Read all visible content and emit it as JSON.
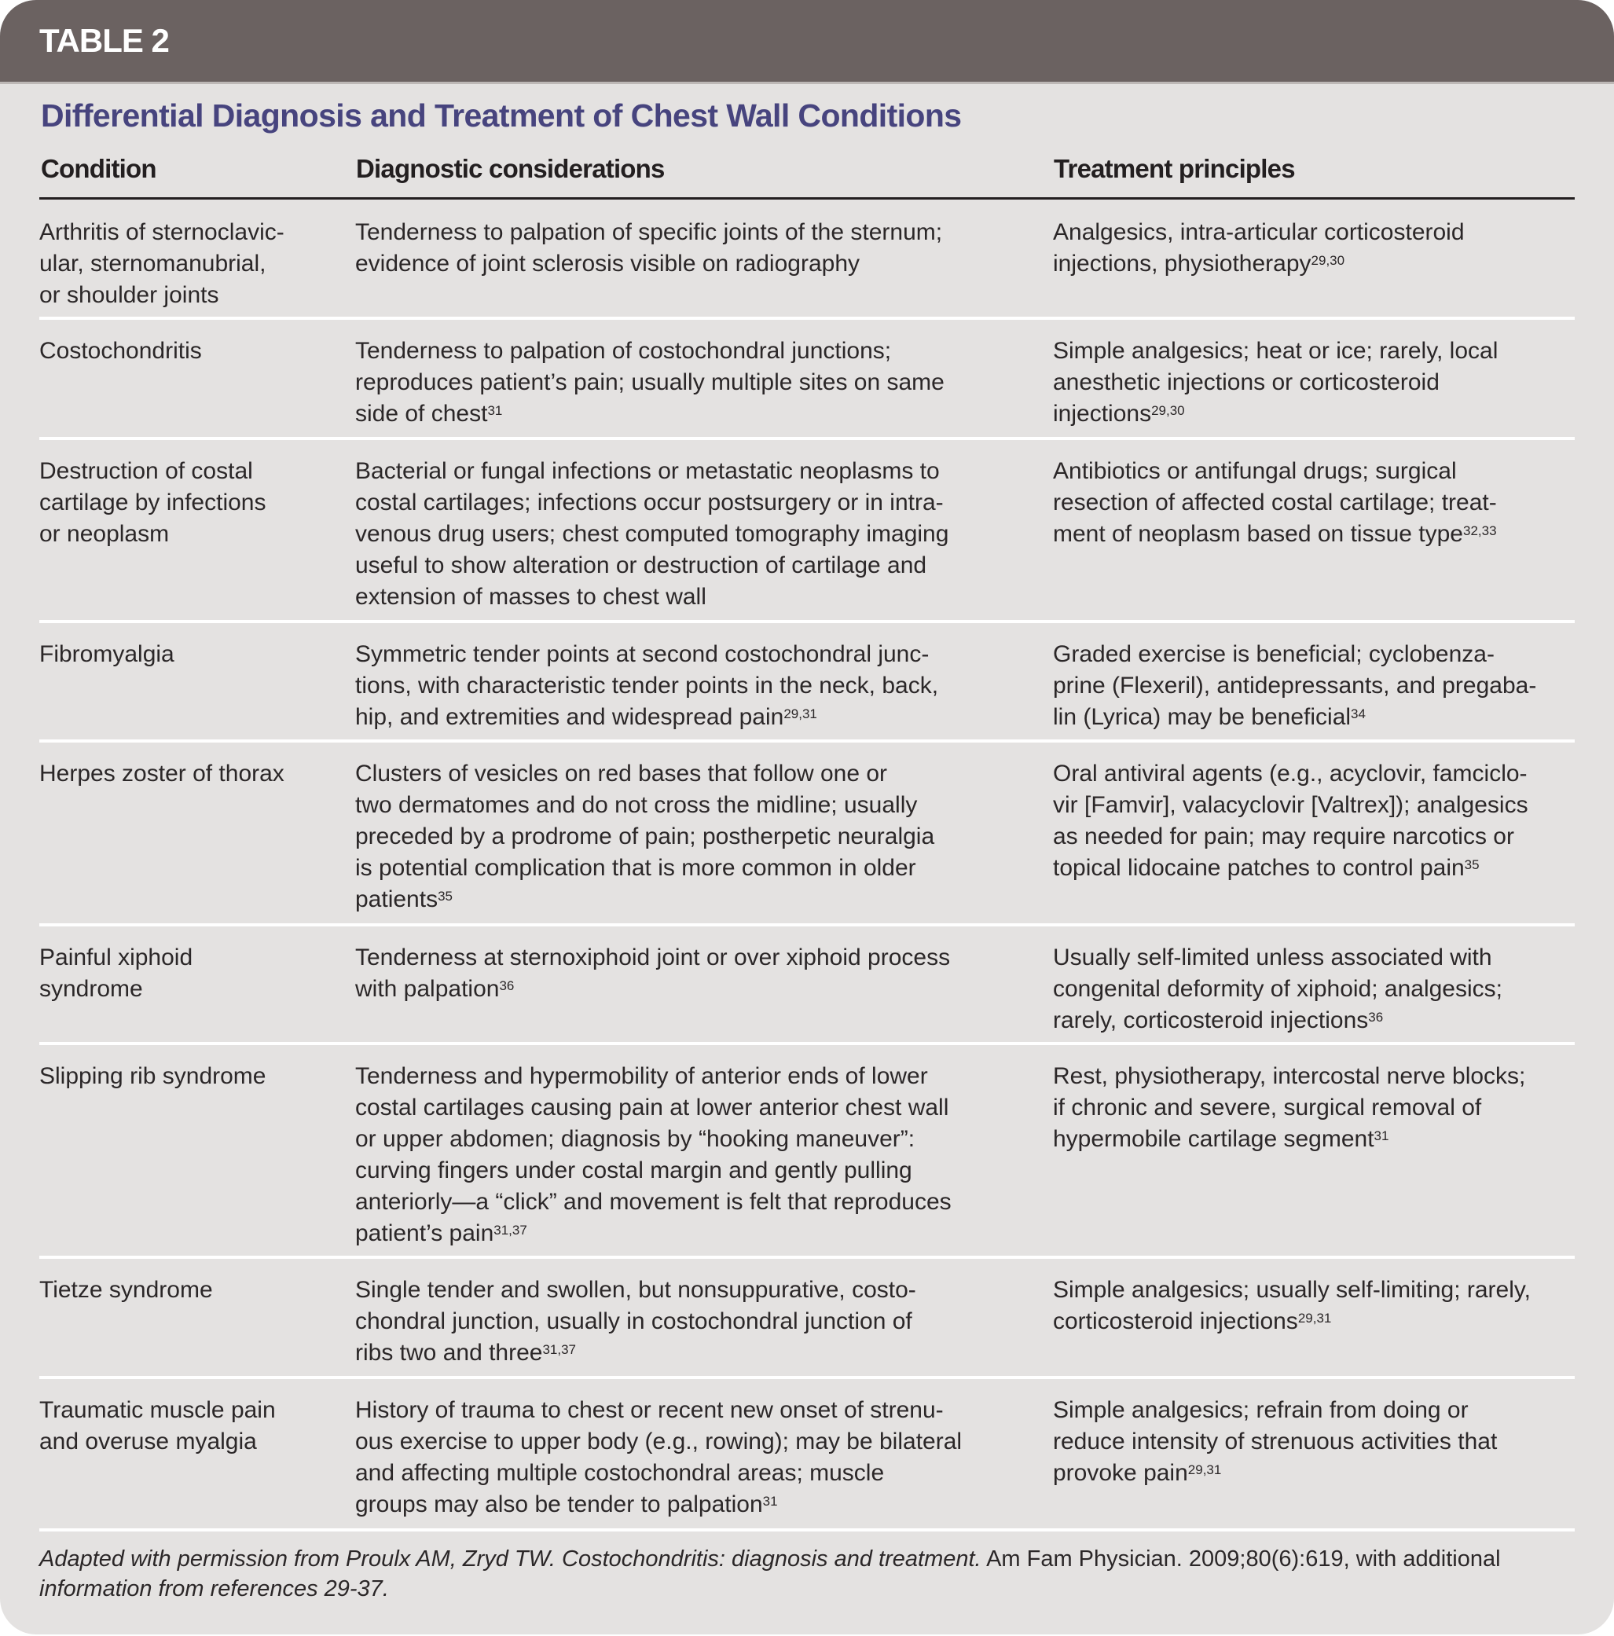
{
  "label": "TABLE 2",
  "title": "Differential Diagnosis and Treatment of Chest Wall Conditions",
  "columns": [
    "Condition",
    "Diagnostic considerations",
    "Treatment principles"
  ],
  "colors": {
    "band": "#6b6261",
    "title": "#47447e",
    "background": "#e4e2e1"
  },
  "rows": [
    {
      "cells": [
        {
          "lines": [
            "Arthritis of sternoclavic-",
            "ular, sternomanubrial,",
            "or shoulder joints"
          ],
          "sup": ""
        },
        {
          "lines": [
            "Tenderness to palpation of specific joints of the sternum;",
            "evidence of joint sclerosis visible on radiography"
          ],
          "sup": ""
        },
        {
          "lines": [
            "Analgesics, intra-articular corticosteroid",
            "injections, physiotherapy"
          ],
          "sup": "29,30"
        }
      ]
    },
    {
      "cells": [
        {
          "lines": [
            "Costochondritis"
          ],
          "sup": ""
        },
        {
          "lines": [
            "Tenderness to palpation of costochondral junctions;",
            "reproduces patient’s pain; usually multiple sites on same",
            "side of chest"
          ],
          "sup": "31"
        },
        {
          "lines": [
            "Simple analgesics; heat or ice; rarely, local",
            "anesthetic injections or corticosteroid",
            "injections"
          ],
          "sup": "29,30"
        }
      ]
    },
    {
      "cells": [
        {
          "lines": [
            "Destruction of costal",
            "cartilage by infections",
            "or neoplasm"
          ],
          "sup": ""
        },
        {
          "lines": [
            "Bacterial or fungal infections or metastatic neoplasms to",
            "costal cartilages; infections occur postsurgery or in intra-",
            "venous drug users; chest computed tomography imaging",
            "useful to show alteration or destruction of cartilage and",
            "extension of masses to chest wall"
          ],
          "sup": ""
        },
        {
          "lines": [
            "Antibiotics or antifungal drugs; surgical",
            "resection of affected costal cartilage; treat-",
            "ment of neoplasm based on tissue type"
          ],
          "sup": "32,33"
        }
      ]
    },
    {
      "cells": [
        {
          "lines": [
            "Fibromyalgia"
          ],
          "sup": ""
        },
        {
          "lines": [
            "Symmetric tender points at second costochondral junc-",
            "tions, with characteristic tender points in the neck, back,",
            "hip, and extremities and widespread pain"
          ],
          "sup": "29,31"
        },
        {
          "lines": [
            "Graded exercise is beneficial; cyclobenza-",
            "prine (Flexeril), antidepressants, and pregaba-",
            "lin (Lyrica) may be beneficial"
          ],
          "sup": "34"
        }
      ]
    },
    {
      "cells": [
        {
          "lines": [
            "Herpes zoster of thorax"
          ],
          "sup": ""
        },
        {
          "lines": [
            "Clusters of vesicles on red bases that follow one or",
            "two dermatomes and do not cross the midline; usually",
            "preceded by a prodrome of pain; postherpetic neuralgia",
            "is potential complication that is more common in older",
            "patients"
          ],
          "sup": "35"
        },
        {
          "lines": [
            "Oral antiviral agents (e.g., acyclovir, famciclo-",
            "vir [Famvir], valacyclovir [Valtrex]); analgesics",
            "as needed for pain; may require narcotics or",
            "topical lidocaine patches to control pain"
          ],
          "sup": "35"
        }
      ]
    },
    {
      "cells": [
        {
          "lines": [
            "Painful xiphoid",
            "syndrome"
          ],
          "sup": ""
        },
        {
          "lines": [
            "Tenderness at sternoxiphoid joint or over xiphoid process",
            "with palpation"
          ],
          "sup": "36"
        },
        {
          "lines": [
            "Usually self-limited unless associated with",
            "congenital deformity of xiphoid; analgesics;",
            "rarely, corticosteroid injections"
          ],
          "sup": "36"
        }
      ]
    },
    {
      "cells": [
        {
          "lines": [
            "Slipping rib syndrome"
          ],
          "sup": ""
        },
        {
          "lines": [
            "Tenderness and hypermobility of anterior ends of lower",
            "costal cartilages causing pain at lower anterior chest wall",
            "or upper abdomen; diagnosis by “hooking maneuver”:",
            "curving fingers under costal margin and gently pulling",
            "anteriorly—a “click” and movement is felt that reproduces",
            "patient’s pain"
          ],
          "sup": "31,37"
        },
        {
          "lines": [
            "Rest, physiotherapy, intercostal nerve blocks;",
            "if chronic and severe, surgical removal of",
            "hypermobile cartilage segment"
          ],
          "sup": "31"
        }
      ]
    },
    {
      "cells": [
        {
          "lines": [
            "Tietze syndrome"
          ],
          "sup": ""
        },
        {
          "lines": [
            "Single tender and swollen, but nonsuppurative, costo-",
            "chondral junction, usually in costochondral junction of",
            "ribs two and three"
          ],
          "sup": "31,37"
        },
        {
          "lines": [
            "Simple analgesics; usually self-limiting; rarely,",
            "corticosteroid injections"
          ],
          "sup": "29,31"
        }
      ]
    },
    {
      "cells": [
        {
          "lines": [
            "Traumatic muscle pain",
            "and overuse myalgia"
          ],
          "sup": ""
        },
        {
          "lines": [
            "History of trauma to chest or recent new onset of strenu-",
            "ous exercise to upper body (e.g., rowing); may be bilateral",
            "and affecting multiple costochondral areas; muscle",
            "groups may also be tender to palpation"
          ],
          "sup": "31"
        },
        {
          "lines": [
            "Simple analgesics; refrain from doing or",
            "reduce intensity of strenuous activities that",
            "provoke pain"
          ],
          "sup": "29,31"
        }
      ]
    }
  ],
  "footnote": {
    "part1": "Adapted with permission from Proulx AM, Zryd TW. Costochondritis: diagnosis and treatment.",
    "journal": " Am Fam Physician.",
    "part2": " 2009;80(6):619, with additional",
    "part3": "information from references 29-37."
  }
}
